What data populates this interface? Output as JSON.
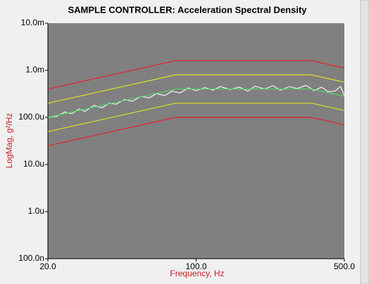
{
  "chart_data": {
    "type": "line",
    "title": "SAMPLE CONTROLLER:  Acceleration Spectral Density",
    "xlabel": "Frequency, Hz",
    "ylabel": "LogMag, g²/Hz",
    "xscale": "log",
    "yscale": "log",
    "xlim": [
      20,
      500
    ],
    "ylim": [
      1e-07,
      0.01
    ],
    "xticks": [
      {
        "value": 20,
        "label": "20.0"
      },
      {
        "value": 100,
        "label": "100.0"
      },
      {
        "value": 500,
        "label": "500.0"
      }
    ],
    "yticks": [
      {
        "value": 0.01,
        "label": "10.0m"
      },
      {
        "value": 0.001,
        "label": "1.0m"
      },
      {
        "value": 0.0001,
        "label": "100.0u"
      },
      {
        "value": 1e-05,
        "label": "10.0u"
      },
      {
        "value": 1e-06,
        "label": "1.0u"
      },
      {
        "value": 1e-07,
        "label": "100.0n"
      }
    ],
    "plot_background": "#808080",
    "series": [
      {
        "color": "#e8202c",
        "x": [
          20,
          80,
          350,
          500
        ],
        "values": [
          0.0004,
          0.0016,
          0.0016,
          0.00112
        ]
      },
      {
        "color": "#e0e028",
        "x": [
          20,
          80,
          350,
          500
        ],
        "values": [
          0.0002,
          0.0008,
          0.0008,
          0.00056
        ]
      },
      {
        "color": "#e0e028",
        "x": [
          20,
          80,
          350,
          500
        ],
        "values": [
          5e-05,
          0.0002,
          0.0002,
          0.00014
        ]
      },
      {
        "color": "#e8202c",
        "x": [
          20,
          80,
          350,
          500
        ],
        "values": [
          2.5e-05,
          0.0001,
          0.0001,
          7e-05
        ]
      },
      {
        "color": "#f2f2f2",
        "x": [
          20,
          22,
          24,
          26,
          28,
          30,
          33,
          36,
          39,
          42,
          46,
          50,
          55,
          60,
          65,
          71,
          77,
          84,
          92,
          100,
          110,
          120,
          130,
          145,
          160,
          175,
          190,
          210,
          230,
          250,
          275,
          300,
          330,
          360,
          390,
          420,
          450,
          480,
          500
        ],
        "values": [
          0.0001,
          0.000105,
          0.00013,
          0.00012,
          0.00015,
          0.000135,
          0.00018,
          0.00016,
          0.0002,
          0.00019,
          0.00024,
          0.00022,
          0.00028,
          0.00026,
          0.00032,
          0.00029,
          0.00036,
          0.00033,
          0.00042,
          0.00037,
          0.00043,
          0.00038,
          0.00045,
          0.00039,
          0.00044,
          0.00036,
          0.00046,
          0.0004,
          0.00047,
          0.00038,
          0.00045,
          0.00041,
          0.00048,
          0.00037,
          0.00044,
          0.00035,
          0.00036,
          0.00045,
          0.00029
        ]
      },
      {
        "color": "#4cd860",
        "x": [
          20,
          80,
          350,
          500
        ],
        "values": [
          0.0001,
          0.0004,
          0.0004,
          0.00028
        ]
      }
    ]
  }
}
